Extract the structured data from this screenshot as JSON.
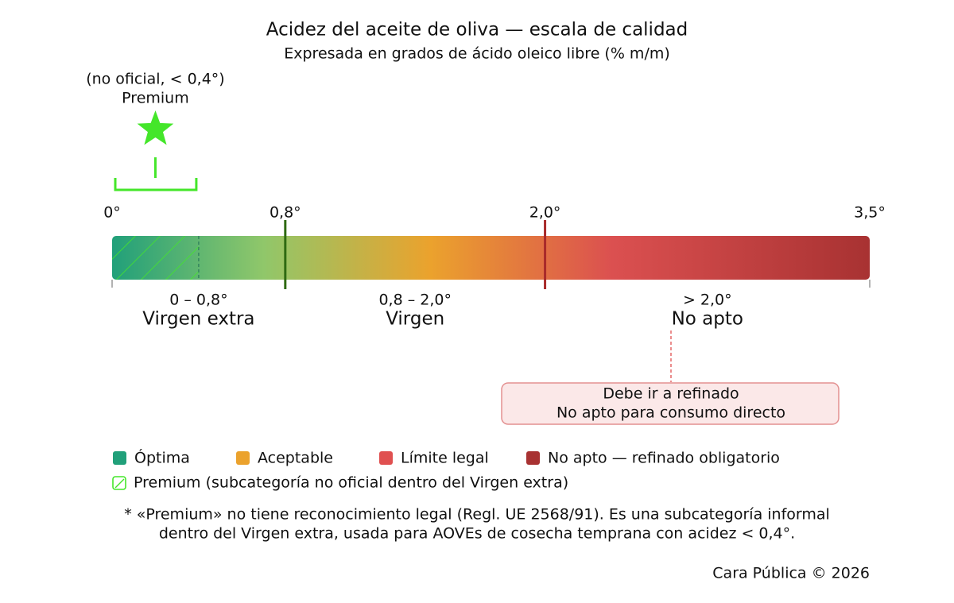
{
  "header": {
    "title": "Acidez del aceite de oliva — escala de calidad",
    "subtitle": "Expresada en grados de ácido oleico libre (% m/m)"
  },
  "premium": {
    "note": "(no oficial, < 0,4°)",
    "name": "Premium",
    "limit": 0.4,
    "color": "#44e62a"
  },
  "scale": {
    "ticks": [
      {
        "value": 0,
        "label": "0°"
      },
      {
        "value": 0.8,
        "label": "0,8°"
      },
      {
        "value": 2.0,
        "label": "2,0°"
      },
      {
        "value": 3.5,
        "label": "3,5°"
      }
    ],
    "markers": [
      {
        "value": 0.8,
        "color": "#2f6a12"
      },
      {
        "value": 2.0,
        "color": "#a82a2a"
      }
    ]
  },
  "zones": [
    {
      "range": "0 – 0,8°",
      "name": "Virgen extra"
    },
    {
      "range": "0,8 – 2,0°",
      "name": "Virgen"
    },
    {
      "range": "> 2,0°",
      "name": "No apto"
    }
  ],
  "callout": {
    "lines": [
      "Debe ir a refinado",
      "No apto para consumo directo"
    ]
  },
  "legend": [
    {
      "label": "Óptima",
      "color": "#21a07a"
    },
    {
      "label": "Aceptable",
      "color": "#eba22d"
    },
    {
      "label": "Límite legal",
      "color": "#e05050"
    },
    {
      "label": "No apto — refinado obligatorio",
      "color": "#a83232"
    }
  ],
  "legend_premium": "Premium (subcategoría no oficial dentro del Virgen extra)",
  "footnote": [
    "* «Premium» no tiene reconocimiento legal (Regl. UE 2568/91). Es una subcategoría informal",
    "dentro del Virgen extra, usada para AOVEs de cosecha temprana con acidez < 0,4°."
  ],
  "credit": "Cara Pública © 2026"
}
